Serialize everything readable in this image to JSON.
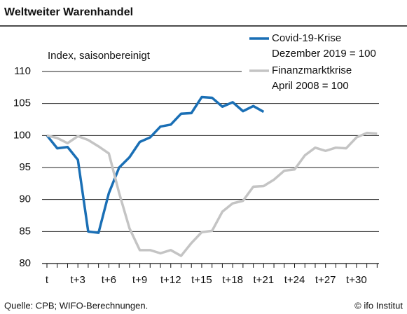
{
  "chart_data": {
    "type": "line",
    "title": "Weltweiter Warenhandel",
    "y_label": "Index, saisonbereinigt",
    "categories": [
      "t",
      null,
      null,
      "t+3",
      null,
      null,
      "t+6",
      null,
      null,
      "t+9",
      null,
      null,
      "t+12",
      null,
      null,
      "t+15",
      null,
      null,
      "t+18",
      null,
      null,
      "t+21",
      null,
      null,
      "t+24",
      null,
      null,
      "t+27",
      null,
      null,
      "t+30",
      null,
      null
    ],
    "series": [
      {
        "name": "Covid-19-Krise",
        "base": "Dezember 2019 = 100",
        "color": "#1a6fb5",
        "values": [
          100,
          98,
          98.2,
          96.2,
          85,
          84.8,
          91,
          95,
          96.6,
          99,
          99.7,
          101.4,
          101.7,
          103.4,
          103.5,
          106,
          105.9,
          104.5,
          105.2,
          103.8,
          104.6,
          103.7,
          null,
          null,
          null,
          null,
          null,
          null,
          null,
          null,
          null,
          null,
          null
        ]
      },
      {
        "name": "Finanzmarktkrise",
        "base": "April 2008 = 100",
        "color": "#c4c4c4",
        "values": [
          100,
          99.6,
          98.8,
          99.9,
          99.3,
          98.3,
          97.2,
          91,
          85.5,
          82.1,
          82.1,
          81.6,
          82.1,
          81.2,
          83.2,
          84.9,
          85.1,
          88.1,
          89.4,
          89.8,
          92,
          92.1,
          93.1,
          94.5,
          94.7,
          96.9,
          98.1,
          97.6,
          98.1,
          98,
          99.7,
          100.4,
          100.3
        ]
      }
    ],
    "ylim": [
      80,
      110
    ],
    "yticks": [
      80,
      85,
      90,
      95,
      100,
      105,
      110
    ],
    "grid": true,
    "legend": "top-right",
    "source": "Quelle: CPB; WIFO-Berechnungen.",
    "copyright": "© ifo Institut"
  }
}
